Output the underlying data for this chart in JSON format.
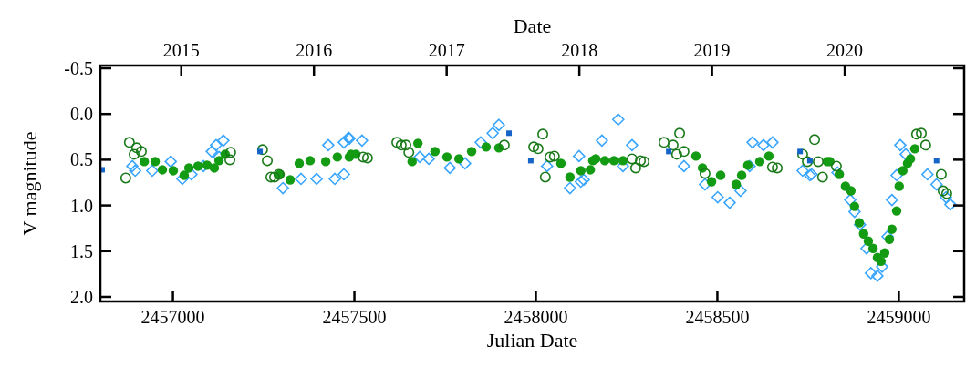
{
  "chart_data": {
    "type": "scatter",
    "xlabel": "Julian Date",
    "ylabel": "V magnitude",
    "x2label": "Date",
    "xlim": [
      2456800,
      2459180
    ],
    "xticks": [
      2457000,
      2457500,
      2458000,
      2458500,
      2459000
    ],
    "x2lim": [
      2014.39,
      2020.9
    ],
    "x2ticks": [
      2015,
      2016,
      2017,
      2018,
      2019,
      2020
    ],
    "ylim": [
      2.05,
      -0.53
    ],
    "yticks": [
      {
        "value": -0.5,
        "label": "-0.5"
      },
      {
        "value": 0,
        "label": "0.0"
      },
      {
        "value": 0.5,
        "label": "0.5"
      },
      {
        "value": 1,
        "label": "1.0"
      },
      {
        "value": 1.5,
        "label": "1.5"
      },
      {
        "value": 2,
        "label": "2.0"
      }
    ],
    "grid": false,
    "series": [
      {
        "color": "#3aa6ff",
        "marker": "diamond",
        "x": [
          2456888,
          2456896,
          2456943,
          2456994,
          2457026,
          2457051,
          2457084,
          2457107,
          2457119,
          2457127,
          2457139,
          2457303,
          2457353,
          2457396,
          2457428,
          2457446,
          2457471,
          2457471,
          2457486,
          2457484,
          2457521,
          2457680,
          2457705,
          2457763,
          2457805,
          2457848,
          2457881,
          2457898,
          2458031,
          2458094,
          2458124,
          2458119,
          2458132,
          2458182,
          2458227,
          2458240,
          2458265,
          2458408,
          2458466,
          2458501,
          2458534,
          2458564,
          2458589,
          2458597,
          2458627,
          2458652,
          2458735,
          2458755,
          2458760,
          2458831,
          2458866,
          2458878,
          2458893,
          2458911,
          2458923,
          2458941,
          2458954,
          2458969,
          2458981,
          2458994,
          2459004,
          2459019,
          2459079,
          2459104,
          2459130,
          2459142
        ],
        "values": [
          0.57,
          0.62,
          0.62,
          0.52,
          0.71,
          0.66,
          0.57,
          0.41,
          0.34,
          0.47,
          0.29,
          0.81,
          0.71,
          0.71,
          0.34,
          0.71,
          0.31,
          0.66,
          0.27,
          0.26,
          0.29,
          0.47,
          0.49,
          0.59,
          0.54,
          0.31,
          0.21,
          0.12,
          0.57,
          0.81,
          0.74,
          0.46,
          0.72,
          0.29,
          0.06,
          0.57,
          0.34,
          0.57,
          0.77,
          0.91,
          0.97,
          0.84,
          0.57,
          0.31,
          0.34,
          0.31,
          0.62,
          0.67,
          0.66,
          0.64,
          0.94,
          1.07,
          1.21,
          1.47,
          1.74,
          1.77,
          1.67,
          1.34,
          0.94,
          0.67,
          0.34,
          0.44,
          0.66,
          0.77,
          0.91,
          0.99
        ]
      },
      {
        "color": "#139b13",
        "marker": "circle",
        "x": [
          2456921,
          2456951,
          2456971,
          2457001,
          2457031,
          2457044,
          2457069,
          2457094,
          2457114,
          2457127,
          2457144,
          2457295,
          2457323,
          2457348,
          2457378,
          2457421,
          2457453,
          2457486,
          2457491,
          2457504,
          2457659,
          2457675,
          2457722,
          2457755,
          2457788,
          2457823,
          2457863,
          2457898,
          2458069,
          2458094,
          2458124,
          2458150,
          2458157,
          2458165,
          2458190,
          2458215,
          2458240,
          2458441,
          2458459,
          2458484,
          2458509,
          2458552,
          2458567,
          2458584,
          2458617,
          2458642,
          2458803,
          2458810,
          2458836,
          2458853,
          2458868,
          2458878,
          2458891,
          2458903,
          2458916,
          2458929,
          2458941,
          2458951,
          2458961,
          2458974,
          2458981,
          2458994,
          2459001,
          2459011,
          2459024,
          2459032,
          2459044
        ],
        "values": [
          0.52,
          0.52,
          0.61,
          0.62,
          0.67,
          0.59,
          0.57,
          0.56,
          0.59,
          0.51,
          0.44,
          0.66,
          0.72,
          0.54,
          0.51,
          0.52,
          0.47,
          0.47,
          0.44,
          0.44,
          0.52,
          0.32,
          0.41,
          0.47,
          0.49,
          0.41,
          0.36,
          0.37,
          0.54,
          0.69,
          0.62,
          0.61,
          0.51,
          0.49,
          0.51,
          0.51,
          0.51,
          0.46,
          0.59,
          0.74,
          0.67,
          0.77,
          0.67,
          0.56,
          0.52,
          0.46,
          0.52,
          0.52,
          0.66,
          0.79,
          0.84,
          1.01,
          1.19,
          1.31,
          1.39,
          1.47,
          1.57,
          1.61,
          1.52,
          1.37,
          1.26,
          1.06,
          0.79,
          0.62,
          0.54,
          0.49,
          0.38
        ]
      },
      {
        "color": "#1a7a1a",
        "marker": "circle",
        "x": [
          2456870,
          2456880,
          2456893,
          2456900,
          2456913,
          2457157,
          2457159,
          2457247,
          2457260,
          2457270,
          2457280,
          2457292,
          2457524,
          2457536,
          2457617,
          2457629,
          2457642,
          2457650,
          2457913,
          2457994,
          2458006,
          2458019,
          2458026,
          2458039,
          2458051,
          2458265,
          2458275,
          2458288,
          2458298,
          2458353,
          2458378,
          2458388,
          2458396,
          2458408,
          2458466,
          2458652,
          2458665,
          2458735,
          2458748,
          2458768,
          2458778,
          2458790,
          2458828,
          2459049,
          2459062,
          2459074,
          2459117,
          2459122,
          2459132
        ],
        "values": [
          0.7,
          0.31,
          0.44,
          0.37,
          0.41,
          0.5,
          0.42,
          0.39,
          0.51,
          0.69,
          0.69,
          0.66,
          0.47,
          0.48,
          0.31,
          0.34,
          0.34,
          0.42,
          0.34,
          0.36,
          0.38,
          0.22,
          0.69,
          0.47,
          0.46,
          0.49,
          0.59,
          0.51,
          0.52,
          0.31,
          0.34,
          0.44,
          0.21,
          0.41,
          0.65,
          0.58,
          0.59,
          0.44,
          0.52,
          0.28,
          0.52,
          0.69,
          0.57,
          0.22,
          0.21,
          0.34,
          0.66,
          0.84,
          0.87
        ]
      },
      {
        "color": "#1565c8",
        "marker": "square",
        "x": [
          2456805,
          2457240,
          2457926,
          2457986,
          2458366,
          2458728,
          2458755,
          2459104
        ],
        "values": [
          0.61,
          0.41,
          0.21,
          0.51,
          0.41,
          0.41,
          0.51,
          0.51
        ]
      }
    ]
  }
}
